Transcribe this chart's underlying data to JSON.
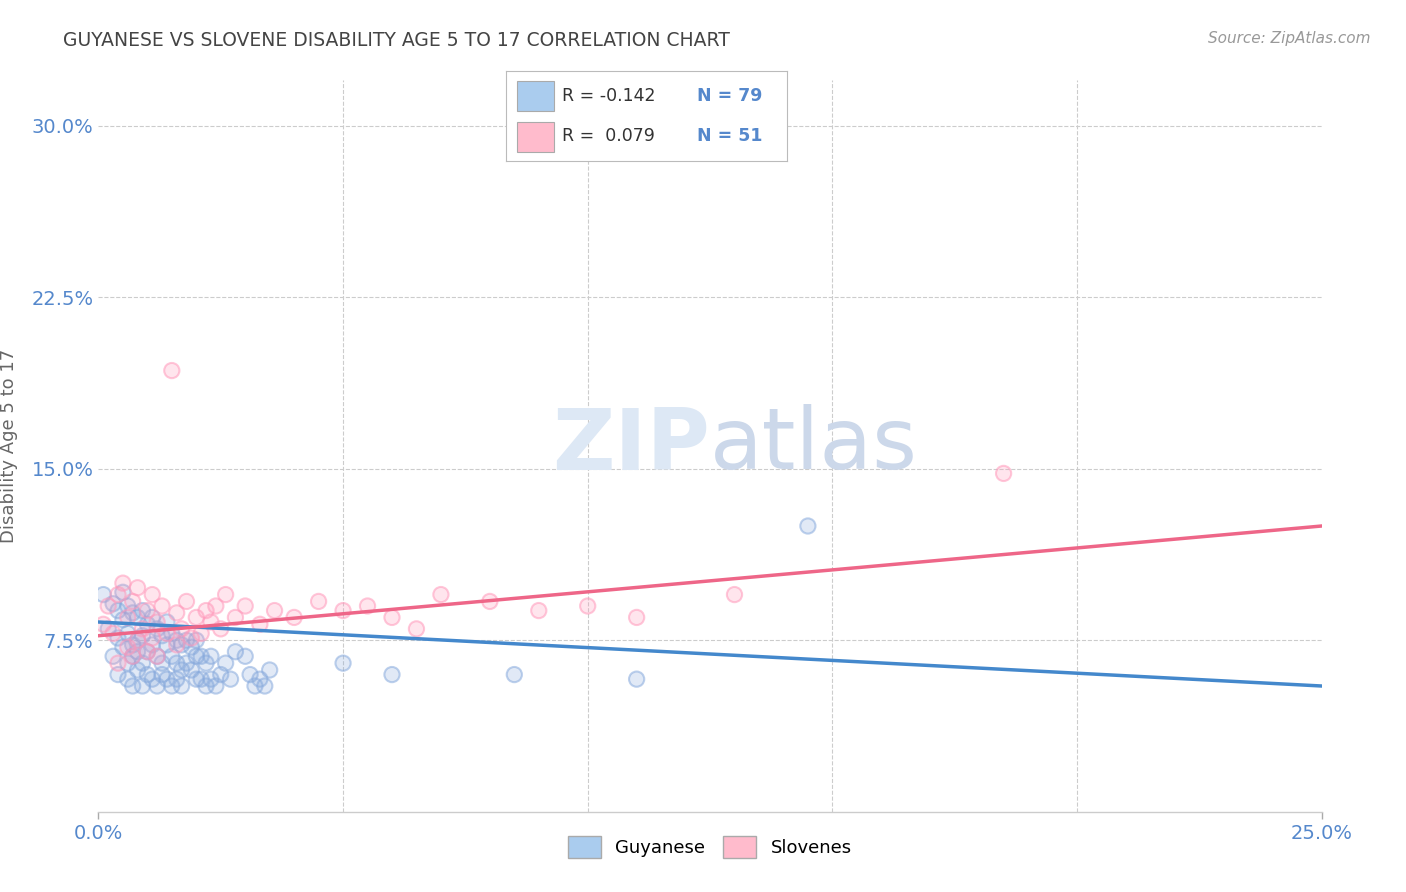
{
  "title": "GUYANESE VS SLOVENE DISABILITY AGE 5 TO 17 CORRELATION CHART",
  "source": "Source: ZipAtlas.com",
  "ylabel": "Disability Age 5 to 17",
  "xlim": [
    0.0,
    0.25
  ],
  "ylim": [
    0.0,
    0.32
  ],
  "xticks": [
    0.0,
    0.25
  ],
  "xticklabels": [
    "0.0%",
    "25.0%"
  ],
  "yticks": [
    0.075,
    0.15,
    0.225,
    0.3
  ],
  "yticklabels": [
    "7.5%",
    "15.0%",
    "22.5%",
    "30.0%"
  ],
  "blue_color": "#aaccee",
  "pink_color": "#ffbbcc",
  "blue_scatter_color": "#88aadd",
  "pink_scatter_color": "#ff99bb",
  "line_blue": "#4488cc",
  "line_pink": "#ee6688",
  "tick_color": "#5588cc",
  "grid_color": "#cccccc",
  "watermark_color": "#dde8f5",
  "blue_line_x0": 0.0,
  "blue_line_y0": 0.083,
  "blue_line_x1": 0.25,
  "blue_line_y1": 0.055,
  "pink_line_x0": 0.0,
  "pink_line_y0": 0.077,
  "pink_line_x1": 0.25,
  "pink_line_y1": 0.125,
  "guyanese_x": [
    0.001,
    0.002,
    0.003,
    0.003,
    0.004,
    0.004,
    0.004,
    0.005,
    0.005,
    0.005,
    0.006,
    0.006,
    0.006,
    0.006,
    0.007,
    0.007,
    0.007,
    0.007,
    0.008,
    0.008,
    0.008,
    0.008,
    0.009,
    0.009,
    0.009,
    0.009,
    0.01,
    0.01,
    0.01,
    0.011,
    0.011,
    0.011,
    0.012,
    0.012,
    0.012,
    0.013,
    0.013,
    0.013,
    0.014,
    0.014,
    0.014,
    0.015,
    0.015,
    0.015,
    0.016,
    0.016,
    0.016,
    0.017,
    0.017,
    0.017,
    0.018,
    0.018,
    0.019,
    0.019,
    0.02,
    0.02,
    0.02,
    0.021,
    0.021,
    0.022,
    0.022,
    0.023,
    0.023,
    0.024,
    0.025,
    0.026,
    0.027,
    0.028,
    0.03,
    0.031,
    0.032,
    0.033,
    0.034,
    0.035,
    0.05,
    0.06,
    0.085,
    0.11,
    0.145
  ],
  "guyanese_y": [
    0.095,
    0.08,
    0.068,
    0.091,
    0.06,
    0.076,
    0.088,
    0.072,
    0.084,
    0.096,
    0.065,
    0.078,
    0.09,
    0.058,
    0.073,
    0.087,
    0.055,
    0.068,
    0.062,
    0.075,
    0.085,
    0.07,
    0.065,
    0.077,
    0.088,
    0.055,
    0.07,
    0.082,
    0.06,
    0.073,
    0.085,
    0.058,
    0.068,
    0.08,
    0.055,
    0.065,
    0.077,
    0.06,
    0.073,
    0.083,
    0.058,
    0.068,
    0.078,
    0.055,
    0.065,
    0.075,
    0.058,
    0.062,
    0.073,
    0.055,
    0.065,
    0.075,
    0.062,
    0.072,
    0.058,
    0.068,
    0.075,
    0.058,
    0.068,
    0.055,
    0.065,
    0.058,
    0.068,
    0.055,
    0.06,
    0.065,
    0.058,
    0.07,
    0.068,
    0.06,
    0.055,
    0.058,
    0.055,
    0.062,
    0.065,
    0.06,
    0.06,
    0.058,
    0.125
  ],
  "slovene_x": [
    0.001,
    0.002,
    0.003,
    0.004,
    0.004,
    0.005,
    0.006,
    0.006,
    0.007,
    0.007,
    0.008,
    0.008,
    0.009,
    0.01,
    0.01,
    0.011,
    0.011,
    0.012,
    0.012,
    0.013,
    0.014,
    0.015,
    0.016,
    0.016,
    0.017,
    0.018,
    0.019,
    0.02,
    0.021,
    0.022,
    0.023,
    0.024,
    0.025,
    0.026,
    0.028,
    0.03,
    0.033,
    0.036,
    0.04,
    0.045,
    0.05,
    0.055,
    0.06,
    0.065,
    0.07,
    0.08,
    0.09,
    0.1,
    0.11,
    0.13,
    0.185
  ],
  "slovene_y": [
    0.082,
    0.09,
    0.078,
    0.095,
    0.065,
    0.1,
    0.072,
    0.085,
    0.068,
    0.092,
    0.075,
    0.098,
    0.08,
    0.07,
    0.088,
    0.076,
    0.095,
    0.083,
    0.068,
    0.09,
    0.078,
    0.193,
    0.073,
    0.087,
    0.08,
    0.092,
    0.076,
    0.085,
    0.078,
    0.088,
    0.083,
    0.09,
    0.08,
    0.095,
    0.085,
    0.09,
    0.082,
    0.088,
    0.085,
    0.092,
    0.088,
    0.09,
    0.085,
    0.08,
    0.095,
    0.092,
    0.088,
    0.09,
    0.085,
    0.095,
    0.148
  ]
}
